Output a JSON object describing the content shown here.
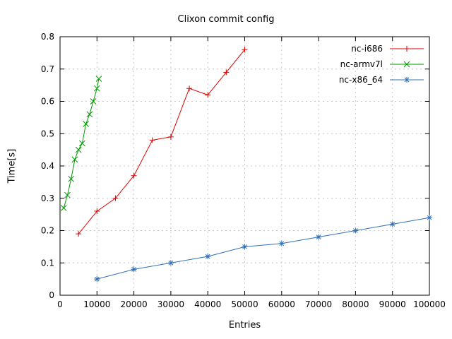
{
  "chart_data": {
    "type": "line",
    "title": "Clixon commit config",
    "xlabel": "Entries",
    "ylabel": "Time[s]",
    "xlim": [
      0,
      100000
    ],
    "ylim": [
      0,
      0.8
    ],
    "x_ticks": [
      0,
      10000,
      20000,
      30000,
      40000,
      50000,
      60000,
      70000,
      80000,
      90000,
      100000
    ],
    "y_ticks": [
      0,
      0.1,
      0.2,
      0.3,
      0.4,
      0.5,
      0.6,
      0.7,
      0.8
    ],
    "grid": true,
    "legend_position": "top-right",
    "background": "#ffffff",
    "series": [
      {
        "name": "nc-i686",
        "color": "#dd0000",
        "marker": "plus",
        "points": [
          [
            5000,
            0.19
          ],
          [
            10000,
            0.26
          ],
          [
            15000,
            0.3
          ],
          [
            20000,
            0.37
          ],
          [
            25000,
            0.48
          ],
          [
            30000,
            0.49
          ],
          [
            35000,
            0.64
          ],
          [
            40000,
            0.62
          ],
          [
            45000,
            0.69
          ],
          [
            50000,
            0.76
          ]
        ]
      },
      {
        "name": "nc-armv7l",
        "color": "#009900",
        "marker": "cross",
        "points": [
          [
            1000,
            0.27
          ],
          [
            2000,
            0.31
          ],
          [
            3000,
            0.36
          ],
          [
            4000,
            0.42
          ],
          [
            5000,
            0.45
          ],
          [
            6000,
            0.47
          ],
          [
            7000,
            0.53
          ],
          [
            8000,
            0.56
          ],
          [
            9000,
            0.6
          ],
          [
            10000,
            0.64
          ],
          [
            10500,
            0.67
          ]
        ]
      },
      {
        "name": "nc-x86_64",
        "color": "#3070b8",
        "marker": "asterisk",
        "points": [
          [
            10000,
            0.05
          ],
          [
            20000,
            0.08
          ],
          [
            30000,
            0.1
          ],
          [
            40000,
            0.12
          ],
          [
            50000,
            0.15
          ],
          [
            60000,
            0.16
          ],
          [
            70000,
            0.18
          ],
          [
            80000,
            0.2
          ],
          [
            90000,
            0.22
          ],
          [
            100000,
            0.24
          ]
        ]
      }
    ]
  }
}
